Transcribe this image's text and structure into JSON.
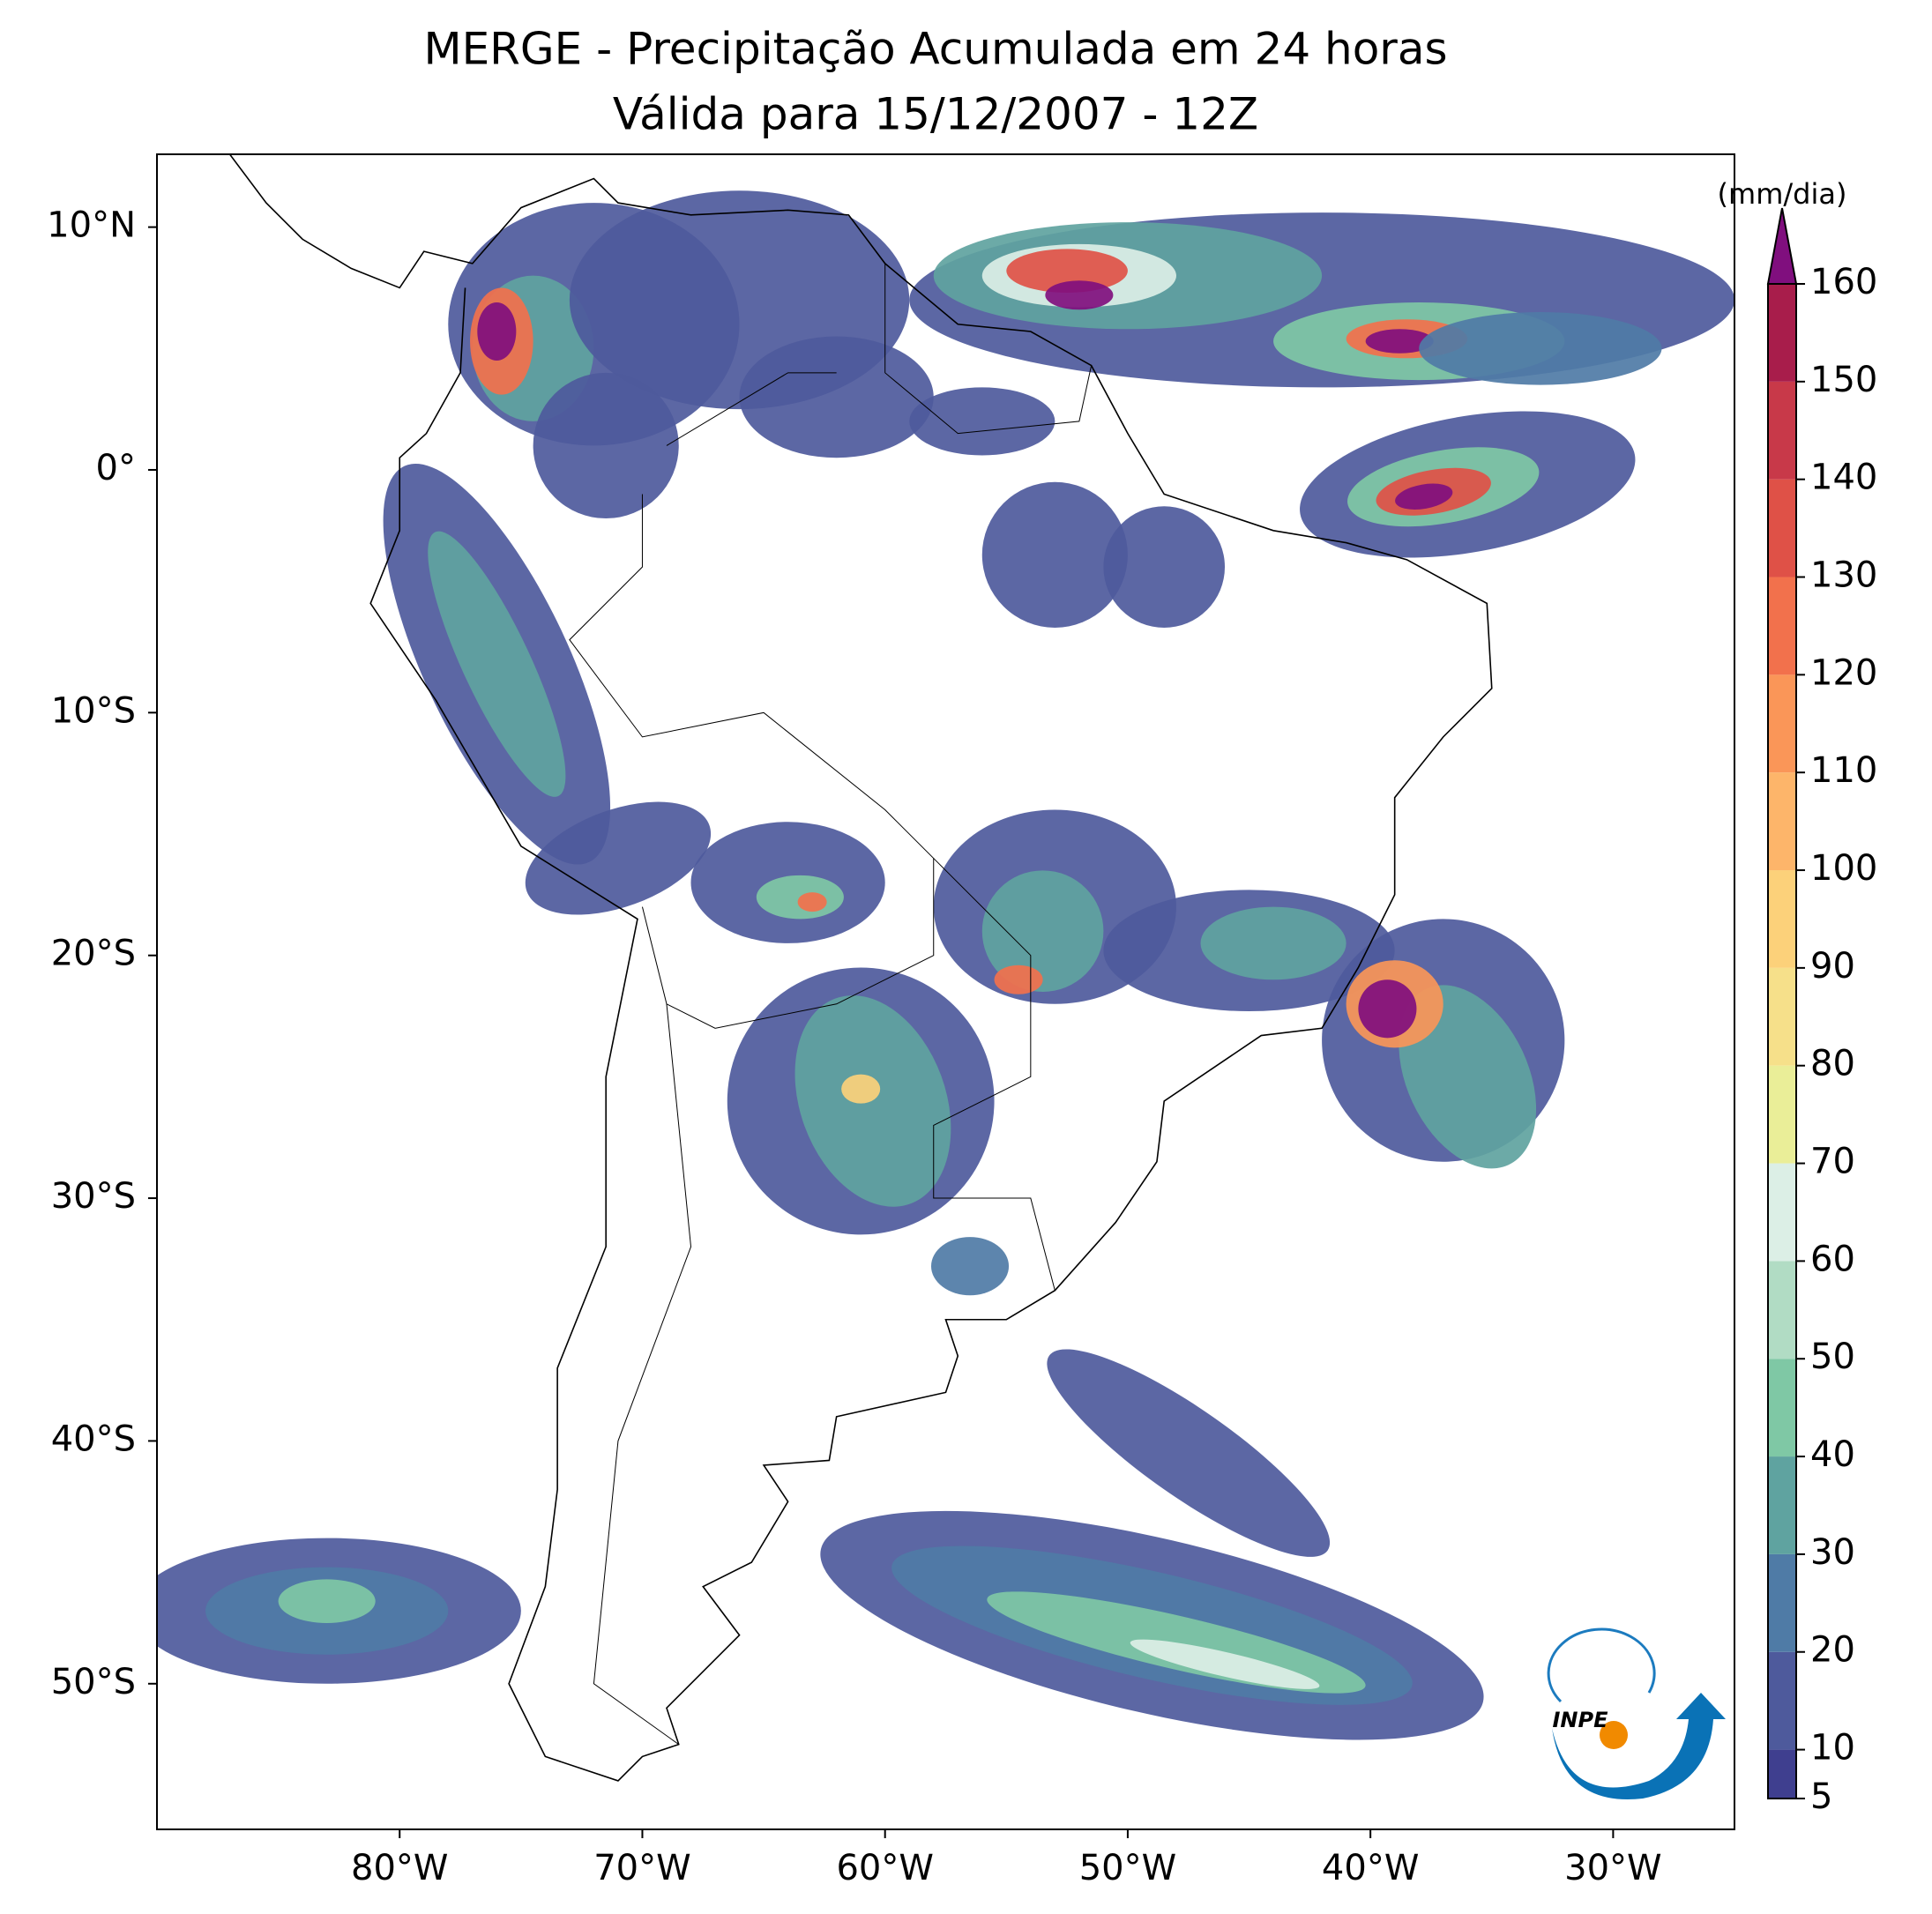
{
  "title": "MERGE - Precipitação Acumulada em 24 horas",
  "subtitle": "Válida para 15/12/2007 - 12Z",
  "map": {
    "xlim": [
      -90,
      -25
    ],
    "ylim": [
      -56,
      13
    ],
    "xticks": [
      {
        "value": -80,
        "label": "80°W"
      },
      {
        "value": -70,
        "label": "70°W"
      },
      {
        "value": -60,
        "label": "60°W"
      },
      {
        "value": -50,
        "label": "50°W"
      },
      {
        "value": -40,
        "label": "40°W"
      },
      {
        "value": -30,
        "label": "30°W"
      }
    ],
    "yticks": [
      {
        "value": 10,
        "label": "10°N"
      },
      {
        "value": 0,
        "label": "0°"
      },
      {
        "value": -10,
        "label": "10°S"
      },
      {
        "value": -20,
        "label": "20°S"
      },
      {
        "value": -30,
        "label": "30°S"
      },
      {
        "value": -40,
        "label": "40°S"
      },
      {
        "value": -50,
        "label": "50°S"
      }
    ]
  },
  "colorbar": {
    "label": "(mm/dia)",
    "lim": [
      5,
      160
    ],
    "ticks": [
      5,
      10,
      20,
      30,
      40,
      50,
      60,
      70,
      80,
      90,
      100,
      110,
      120,
      130,
      140,
      150,
      160
    ],
    "colors": [
      "#3f3f8f",
      "#4e5a9c",
      "#4f7ba6",
      "#5fa3a0",
      "#7fc8a5",
      "#b1dcc4",
      "#dcefe6",
      "#eaee98",
      "#f6e08a",
      "#fcd17a",
      "#fdb56a",
      "#fa9658",
      "#f2714c",
      "#df5147",
      "#c83949",
      "#a81d4b"
    ],
    "over_color": "#800f7e"
  },
  "logo": {
    "text": "INPE"
  }
}
